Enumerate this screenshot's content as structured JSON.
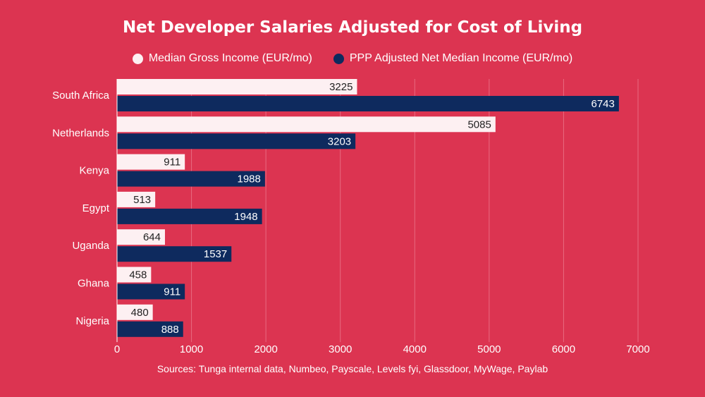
{
  "chart_data": {
    "type": "bar",
    "orientation": "horizontal",
    "title": "Net Developer Salaries Adjusted for Cost of Living",
    "categories": [
      "South Africa",
      "Netherlands",
      "Kenya",
      "Egypt",
      "Uganda",
      "Ghana",
      "Nigeria"
    ],
    "series": [
      {
        "name": "Median Gross Income (EUR/mo)",
        "color": "#fdf0f2",
        "values": [
          3225,
          5085,
          911,
          513,
          644,
          458,
          480
        ]
      },
      {
        "name": "PPP Adjusted Net Median Income (EUR/mo)",
        "color": "#0e2a5e",
        "values": [
          6743,
          3203,
          1988,
          1948,
          1537,
          911,
          888
        ]
      }
    ],
    "xlim": [
      0,
      7000
    ],
    "xticks": [
      0,
      1000,
      2000,
      3000,
      4000,
      5000,
      6000,
      7000
    ],
    "grid": true,
    "legend_position": "top-center"
  },
  "source_note": "Sources: Tunga internal data, Numbeo, Payscale, Levels fyi, Glassdoor, MyWage, Paylab",
  "colors": {
    "background": "#dc3451",
    "gridline": "#e86a80"
  }
}
